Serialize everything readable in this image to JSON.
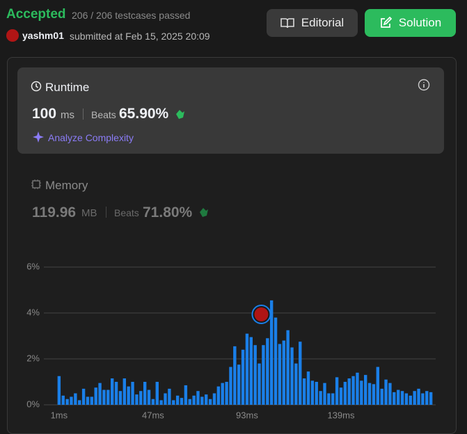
{
  "header": {
    "status": "Accepted",
    "testcases": "206 / 206 testcases passed",
    "user": "yashm01",
    "submitted": "submitted at Feb 15, 2025 20:09"
  },
  "buttons": {
    "editorial": "Editorial",
    "solution": "Solution"
  },
  "runtime": {
    "title": "Runtime",
    "value": 100,
    "unit": "ms",
    "beats_label": "Beats",
    "beats": "65.90%",
    "analyze": "Analyze Complexity"
  },
  "memory": {
    "title": "Memory",
    "value": "119.96",
    "unit": "MB",
    "beats_label": "Beats",
    "beats": "71.80%"
  },
  "chart_data": {
    "type": "bar",
    "color": "#1a7fe8",
    "grid": true,
    "x": [
      1,
      3,
      5,
      7,
      9,
      11,
      13,
      15,
      17,
      19,
      21,
      23,
      25,
      27,
      29,
      31,
      33,
      35,
      37,
      39,
      41,
      43,
      45,
      47,
      49,
      51,
      53,
      55,
      57,
      59,
      61,
      63,
      65,
      67,
      69,
      71,
      73,
      75,
      77,
      79,
      81,
      83,
      85,
      87,
      89,
      91,
      93,
      95,
      97,
      99,
      101,
      103,
      105,
      107,
      109,
      111,
      113,
      115,
      117,
      119,
      121,
      123,
      125,
      127,
      129,
      131,
      133,
      135,
      137,
      139,
      141,
      143,
      145,
      147,
      149,
      151,
      153,
      155,
      157,
      159,
      161,
      163,
      165,
      167,
      169,
      171,
      173,
      175,
      177,
      179,
      181,
      183
    ],
    "values": [
      1.25,
      0.4,
      0.25,
      0.35,
      0.5,
      0.2,
      0.7,
      0.35,
      0.35,
      0.75,
      0.95,
      0.65,
      0.65,
      1.15,
      1.0,
      0.6,
      1.15,
      0.8,
      1.0,
      0.45,
      0.6,
      1.0,
      0.65,
      0.25,
      1.0,
      0.2,
      0.5,
      0.7,
      0.2,
      0.4,
      0.3,
      0.85,
      0.25,
      0.4,
      0.6,
      0.35,
      0.45,
      0.25,
      0.5,
      0.8,
      0.95,
      1.0,
      1.65,
      2.55,
      1.75,
      2.4,
      3.1,
      2.95,
      2.6,
      1.8,
      2.6,
      2.9,
      4.55,
      3.8,
      2.65,
      2.8,
      3.25,
      2.5,
      1.8,
      2.75,
      1.15,
      1.45,
      1.05,
      1.0,
      0.6,
      0.95,
      0.5,
      0.5,
      1.2,
      0.75,
      1.0,
      1.15,
      1.25,
      1.4,
      1.05,
      1.3,
      0.95,
      0.9,
      1.65,
      0.7,
      1.1,
      0.95,
      0.55,
      0.65,
      0.6,
      0.5,
      0.4,
      0.6,
      0.7,
      0.5,
      0.6,
      0.55
    ],
    "xlim": [
      -1,
      185
    ],
    "xticks": [
      {
        "value": 1,
        "label": "1ms"
      },
      {
        "value": 47,
        "label": "47ms"
      },
      {
        "value": 93,
        "label": "93ms"
      },
      {
        "value": 139,
        "label": "139ms"
      }
    ],
    "ylim": [
      0,
      6
    ],
    "yticks": [
      {
        "value": 0,
        "label": "0%"
      },
      {
        "value": 2,
        "label": "2%"
      },
      {
        "value": 4,
        "label": "4%"
      },
      {
        "value": 6,
        "label": "6%"
      }
    ]
  }
}
